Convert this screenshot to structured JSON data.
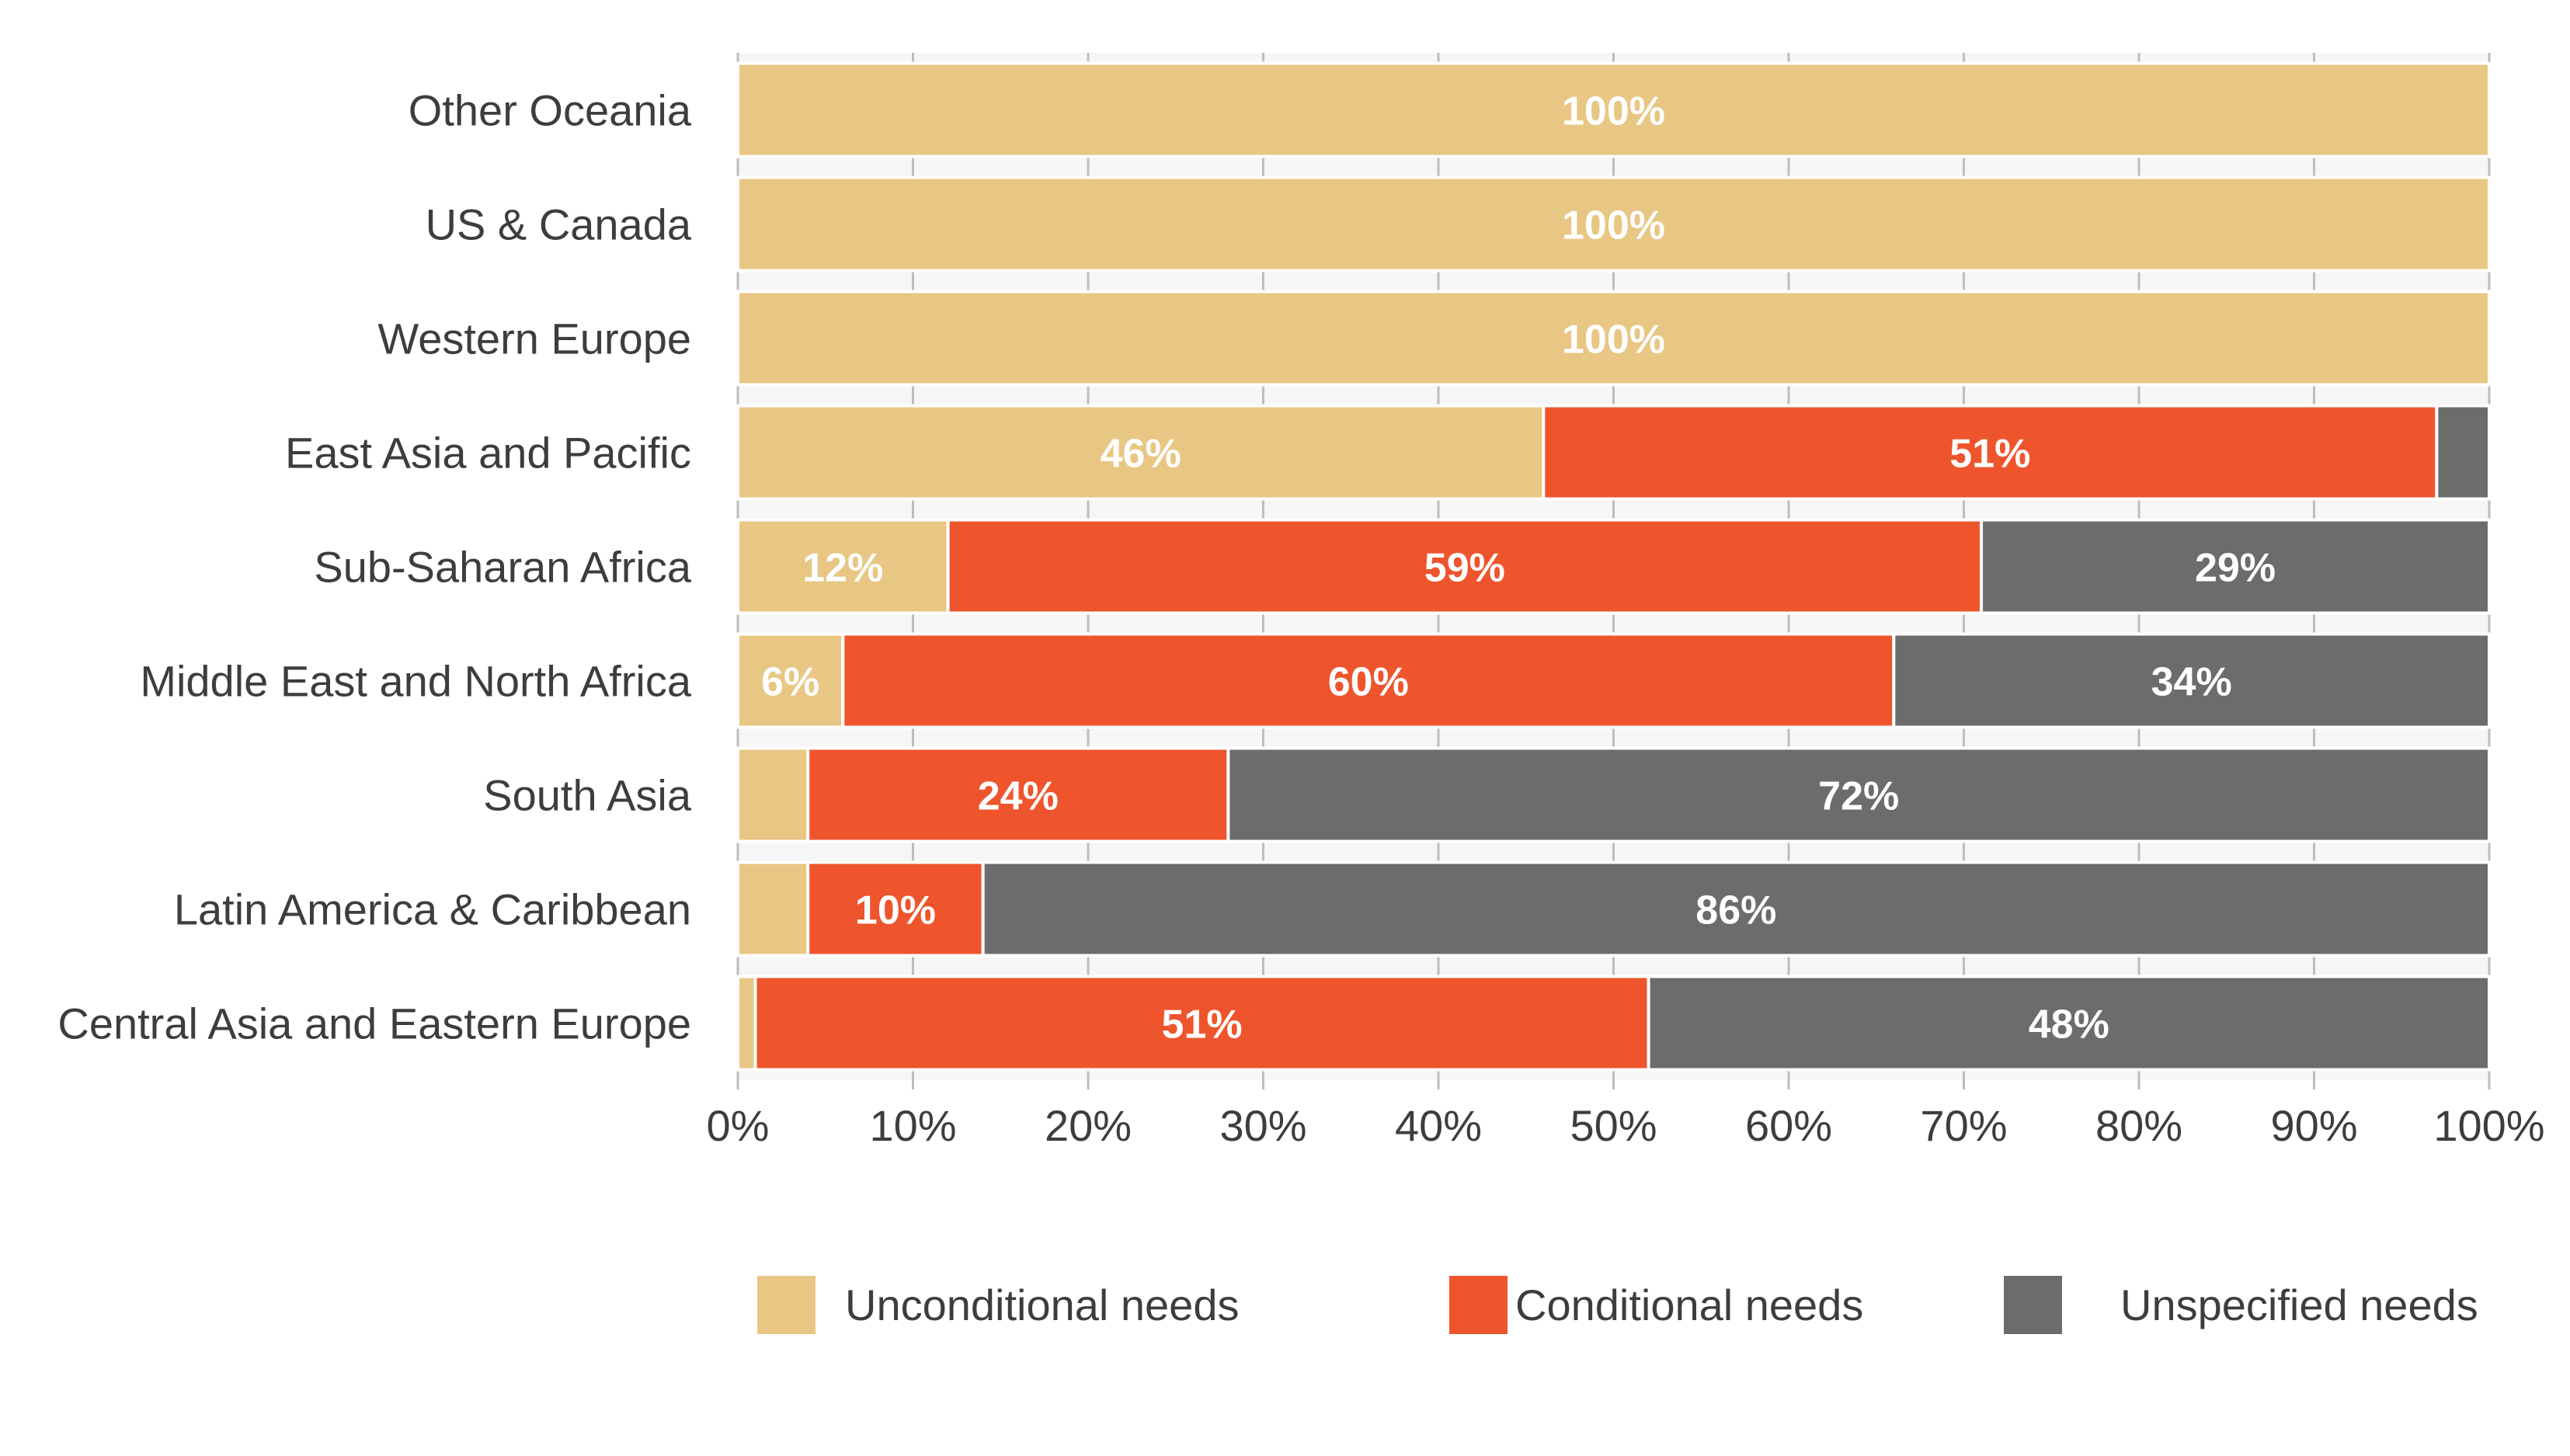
{
  "chart_data": {
    "type": "bar",
    "orientation": "horizontal",
    "stacked": true,
    "categories": [
      "Other Oceania",
      "US & Canada",
      "Western Europe",
      "East Asia and Pacific",
      "Sub-Saharan Africa",
      "Middle East and North Africa",
      "South Asia",
      "Latin America & Caribbean",
      "Central Asia and Eastern Europe"
    ],
    "series": [
      {
        "name": "Unconditional needs",
        "color": "#E8C784",
        "values": [
          100,
          100,
          100,
          46,
          12,
          6,
          4,
          4,
          1
        ],
        "labels": [
          "100%",
          "100%",
          "100%",
          "46%",
          "12%",
          "6%",
          "",
          "",
          ""
        ]
      },
      {
        "name": "Conditional needs",
        "color": "#EE552D",
        "values": [
          0,
          0,
          0,
          51,
          59,
          60,
          24,
          10,
          51
        ],
        "labels": [
          "",
          "",
          "",
          "51%",
          "59%",
          "60%",
          "24%",
          "10%",
          "51%"
        ]
      },
      {
        "name": "Unspecified needs",
        "color": "#6C6C6C",
        "values": [
          0,
          0,
          0,
          3,
          29,
          34,
          72,
          86,
          48
        ],
        "labels": [
          "",
          "",
          "",
          "",
          "29%",
          "34%",
          "72%",
          "86%",
          "48%"
        ]
      }
    ],
    "xlim": [
      0,
      100
    ],
    "x_ticks": [
      "0%",
      "10%",
      "20%",
      "30%",
      "40%",
      "50%",
      "60%",
      "70%",
      "80%",
      "90%",
      "100%"
    ],
    "grid": true,
    "legend_position": "bottom",
    "title": "",
    "xlabel": "",
    "ylabel": ""
  }
}
